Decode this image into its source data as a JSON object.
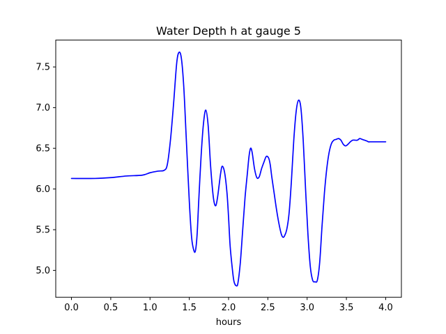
{
  "chart_data": {
    "type": "line",
    "title": "Water Depth h at gauge 5",
    "xlabel": "hours",
    "ylabel": "",
    "xlim": [
      -0.2,
      4.2
    ],
    "ylim": [
      4.67,
      7.83
    ],
    "grid": false,
    "xticks": [
      {
        "value": 0.0,
        "label": "0.0"
      },
      {
        "value": 0.5,
        "label": "0.5"
      },
      {
        "value": 1.0,
        "label": "1.0"
      },
      {
        "value": 1.5,
        "label": "1.5"
      },
      {
        "value": 2.0,
        "label": "2.0"
      },
      {
        "value": 2.5,
        "label": "2.5"
      },
      {
        "value": 3.0,
        "label": "3.0"
      },
      {
        "value": 3.5,
        "label": "3.5"
      },
      {
        "value": 4.0,
        "label": "4.0"
      }
    ],
    "yticks": [
      {
        "value": 5.0,
        "label": "5.0"
      },
      {
        "value": 5.5,
        "label": "5.5"
      },
      {
        "value": 6.0,
        "label": "6.0"
      },
      {
        "value": 6.5,
        "label": "6.5"
      },
      {
        "value": 7.0,
        "label": "7.0"
      },
      {
        "value": 7.5,
        "label": "7.5"
      }
    ],
    "series": [
      {
        "color": "#0000ff",
        "x": [
          0.0,
          0.3,
          0.5,
          0.7,
          0.9,
          1.0,
          1.1,
          1.18,
          1.22,
          1.26,
          1.3,
          1.34,
          1.37,
          1.4,
          1.43,
          1.46,
          1.5,
          1.53,
          1.56,
          1.58,
          1.6,
          1.62,
          1.65,
          1.68,
          1.71,
          1.74,
          1.77,
          1.8,
          1.82,
          1.84,
          1.86,
          1.88,
          1.9,
          1.92,
          1.95,
          1.98,
          2.0,
          2.02,
          2.05,
          2.07,
          2.1,
          2.12,
          2.15,
          2.18,
          2.21,
          2.24,
          2.26,
          2.28,
          2.3,
          2.33,
          2.36,
          2.39,
          2.42,
          2.45,
          2.48,
          2.51,
          2.53,
          2.55,
          2.58,
          2.61,
          2.64,
          2.67,
          2.69,
          2.71,
          2.74,
          2.77,
          2.8,
          2.83,
          2.86,
          2.89,
          2.92,
          2.95,
          2.98,
          3.01,
          3.04,
          3.07,
          3.1,
          3.13,
          3.16,
          3.19,
          3.22,
          3.25,
          3.28,
          3.31,
          3.34,
          3.37,
          3.4,
          3.43,
          3.46,
          3.49,
          3.52,
          3.55,
          3.58,
          3.61,
          3.64,
          3.67,
          3.7,
          3.73,
          3.76,
          3.78,
          3.8,
          3.83,
          3.86,
          3.89,
          3.92,
          3.94,
          3.97,
          4.0
        ],
        "y": [
          6.13,
          6.13,
          6.14,
          6.16,
          6.17,
          6.2,
          6.22,
          6.23,
          6.3,
          6.6,
          7.05,
          7.55,
          7.68,
          7.6,
          7.25,
          6.65,
          5.85,
          5.4,
          5.24,
          5.25,
          5.45,
          5.85,
          6.4,
          6.8,
          6.97,
          6.78,
          6.3,
          5.95,
          5.82,
          5.8,
          5.9,
          6.05,
          6.2,
          6.28,
          6.2,
          5.95,
          5.65,
          5.3,
          5.0,
          4.86,
          4.81,
          4.85,
          5.1,
          5.5,
          5.9,
          6.2,
          6.4,
          6.5,
          6.45,
          6.25,
          6.14,
          6.15,
          6.25,
          6.33,
          6.4,
          6.38,
          6.3,
          6.15,
          5.95,
          5.75,
          5.58,
          5.45,
          5.41,
          5.42,
          5.5,
          5.7,
          6.1,
          6.6,
          6.95,
          7.09,
          7.0,
          6.6,
          6.0,
          5.45,
          5.05,
          4.88,
          4.86,
          4.88,
          5.1,
          5.55,
          5.95,
          6.25,
          6.45,
          6.56,
          6.6,
          6.61,
          6.62,
          6.6,
          6.55,
          6.53,
          6.55,
          6.58,
          6.6,
          6.6,
          6.6,
          6.62,
          6.61,
          6.6,
          6.59,
          6.58,
          6.58,
          6.58,
          6.58,
          6.58,
          6.58,
          6.58,
          6.58,
          6.58
        ]
      }
    ]
  }
}
